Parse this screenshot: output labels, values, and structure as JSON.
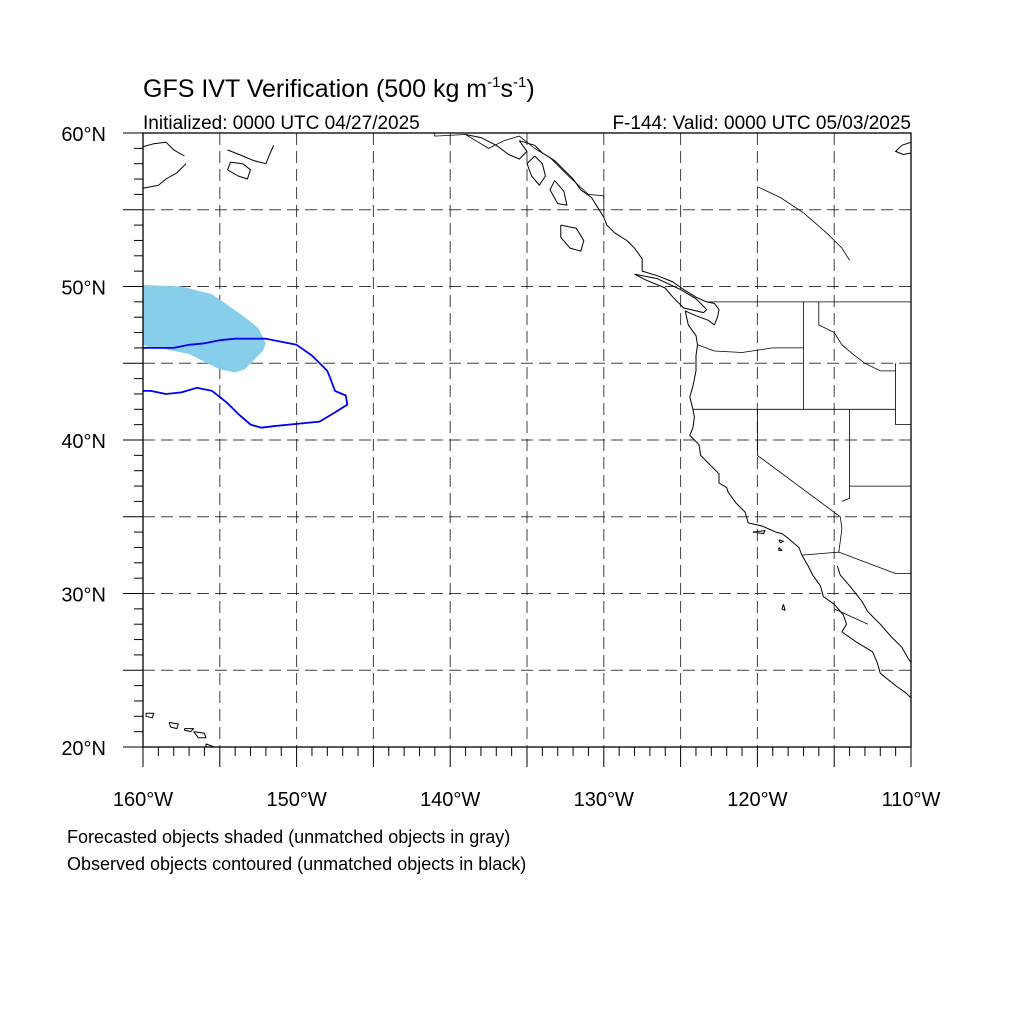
{
  "title": {
    "main": "GFS IVT Verification (500 kg m",
    "sup1": "-1",
    "mid": "s",
    "sup2": "-1",
    "end": ")"
  },
  "init_label": "Initialized: 0000 UTC 04/27/2025",
  "valid_label": "F-144: Valid: 0000 UTC 05/03/2025",
  "map_extent": {
    "lon_min": -160,
    "lon_max": -110,
    "lat_min": 20,
    "lat_max": 60
  },
  "lat_labels": [
    {
      "value": 60,
      "text": "60°N"
    },
    {
      "value": 50,
      "text": "50°N"
    },
    {
      "value": 40,
      "text": "40°N"
    },
    {
      "value": 30,
      "text": "30°N"
    },
    {
      "value": 20,
      "text": "20°N"
    }
  ],
  "lon_labels": [
    {
      "value": -160,
      "text": "160°W"
    },
    {
      "value": -150,
      "text": "150°W"
    },
    {
      "value": -140,
      "text": "140°W"
    },
    {
      "value": -130,
      "text": "130°W"
    },
    {
      "value": -120,
      "text": "120°W"
    },
    {
      "value": -110,
      "text": "110°W"
    }
  ],
  "grid_lats": [
    25,
    30,
    35,
    40,
    45,
    50,
    55
  ],
  "grid_lons": [
    -155,
    -150,
    -145,
    -140,
    -135,
    -130,
    -125,
    -120,
    -115
  ],
  "colors": {
    "forecast_fill": "#87ceeb",
    "observed_contour": "#0000ee",
    "coastline": "#000000",
    "grid": "#000000"
  },
  "forecast_object": [
    [
      -160,
      50.1
    ],
    [
      -157.5,
      50.0
    ],
    [
      -155.5,
      49.5
    ],
    [
      -154.5,
      48.8
    ],
    [
      -153.5,
      48.1
    ],
    [
      -152.5,
      47.3
    ],
    [
      -152.0,
      46.3
    ],
    [
      -152.2,
      45.8
    ],
    [
      -152.8,
      45.2
    ],
    [
      -153.4,
      44.6
    ],
    [
      -154.0,
      44.4
    ],
    [
      -155.0,
      44.6
    ],
    [
      -156.0,
      45.1
    ],
    [
      -157.0,
      45.6
    ],
    [
      -158.5,
      45.9
    ],
    [
      -159.5,
      46.0
    ],
    [
      -160,
      46.2
    ]
  ],
  "observed_object": [
    [
      -160,
      46.0
    ],
    [
      -158.0,
      46.0
    ],
    [
      -157.0,
      46.2
    ],
    [
      -156.0,
      46.3
    ],
    [
      -155.0,
      46.5
    ],
    [
      -154.0,
      46.6
    ],
    [
      -152.0,
      46.6
    ],
    [
      -150.0,
      46.2
    ],
    [
      -149.0,
      45.5
    ],
    [
      -148.0,
      44.5
    ],
    [
      -147.8,
      44.0
    ],
    [
      -147.5,
      43.2
    ],
    [
      -146.8,
      42.9
    ],
    [
      -146.7,
      42.3
    ],
    [
      -147.5,
      41.8
    ],
    [
      -148.5,
      41.2
    ],
    [
      -149.5,
      41.1
    ],
    [
      -150.5,
      41.0
    ],
    [
      -151.5,
      40.9
    ],
    [
      -152.3,
      40.8
    ],
    [
      -153.0,
      41.0
    ],
    [
      -153.8,
      41.7
    ],
    [
      -154.5,
      42.4
    ],
    [
      -155.0,
      42.8
    ],
    [
      -155.5,
      43.2
    ],
    [
      -156.5,
      43.4
    ],
    [
      -157.5,
      43.1
    ],
    [
      -158.5,
      43.0
    ],
    [
      -159.5,
      43.2
    ],
    [
      -160,
      43.2
    ]
  ],
  "coastlines": [
    [
      [
        -135.5,
        59.5
      ],
      [
        -134.5,
        59.2
      ],
      [
        -134.0,
        58.7
      ],
      [
        -133.2,
        58.2
      ],
      [
        -132.5,
        57.5
      ],
      [
        -132.0,
        57.0
      ],
      [
        -131.5,
        56.3
      ],
      [
        -130.8,
        55.8
      ],
      [
        -130.3,
        55.0
      ],
      [
        -130.0,
        54.5
      ],
      [
        -129.8,
        54.0
      ],
      [
        -129.3,
        53.5
      ],
      [
        -128.5,
        53.0
      ],
      [
        -128.0,
        52.5
      ],
      [
        -127.5,
        51.8
      ],
      [
        -127.5,
        51.0
      ],
      [
        -126.5,
        50.7
      ],
      [
        -125.5,
        50.3
      ],
      [
        -124.8,
        49.8
      ],
      [
        -124.0,
        49.3
      ],
      [
        -123.3,
        49.0
      ],
      [
        -122.8,
        48.9
      ],
      [
        -122.5,
        48.5
      ],
      [
        -122.6,
        48.0
      ],
      [
        -122.8,
        47.5
      ],
      [
        -123.2,
        47.8
      ],
      [
        -124.0,
        48.1
      ],
      [
        -124.7,
        48.4
      ],
      [
        -124.5,
        47.5
      ],
      [
        -124.0,
        46.8
      ],
      [
        -123.9,
        46.2
      ],
      [
        -124.0,
        45.5
      ],
      [
        -124.0,
        44.5
      ],
      [
        -124.2,
        43.5
      ],
      [
        -124.4,
        42.8
      ],
      [
        -124.2,
        42.0
      ],
      [
        -124.1,
        41.5
      ],
      [
        -124.2,
        40.8
      ],
      [
        -124.4,
        40.3
      ],
      [
        -123.8,
        39.7
      ],
      [
        -123.7,
        39.0
      ],
      [
        -123.0,
        38.3
      ],
      [
        -122.5,
        37.8
      ],
      [
        -122.5,
        37.2
      ],
      [
        -122.0,
        36.9
      ],
      [
        -121.9,
        36.6
      ],
      [
        -121.4,
        35.9
      ],
      [
        -120.8,
        35.3
      ],
      [
        -120.6,
        34.6
      ],
      [
        -119.7,
        34.4
      ],
      [
        -118.8,
        34.0
      ],
      [
        -118.4,
        33.9
      ],
      [
        -118.0,
        33.6
      ],
      [
        -117.3,
        33.0
      ],
      [
        -117.1,
        32.5
      ],
      [
        -116.7,
        31.8
      ],
      [
        -116.4,
        31.2
      ],
      [
        -115.9,
        30.5
      ],
      [
        -115.7,
        29.8
      ],
      [
        -115.0,
        29.3
      ],
      [
        -114.4,
        28.6
      ],
      [
        -114.2,
        28.0
      ],
      [
        -114.5,
        27.5
      ],
      [
        -113.5,
        26.8
      ],
      [
        -112.5,
        26.2
      ],
      [
        -112.2,
        25.5
      ],
      [
        -112.0,
        24.8
      ],
      [
        -111.0,
        24.0
      ],
      [
        -110.3,
        23.5
      ],
      [
        -110,
        23.2
      ]
    ],
    [
      [
        -114.8,
        31.8
      ],
      [
        -114.6,
        31.2
      ],
      [
        -114.0,
        30.5
      ],
      [
        -113.2,
        29.5
      ],
      [
        -112.8,
        28.8
      ],
      [
        -112.0,
        28.0
      ],
      [
        -111.3,
        27.2
      ],
      [
        -110.6,
        26.5
      ],
      [
        -110.2,
        25.8
      ],
      [
        -110,
        25.5
      ]
    ],
    [
      [
        -128.0,
        50.8
      ],
      [
        -127.2,
        50.4
      ],
      [
        -126.0,
        49.9
      ],
      [
        -125.5,
        49.3
      ],
      [
        -124.8,
        48.6
      ],
      [
        -123.5,
        48.3
      ],
      [
        -123.3,
        48.5
      ],
      [
        -124.0,
        49.2
      ],
      [
        -125.0,
        49.8
      ],
      [
        -126.5,
        50.5
      ],
      [
        -128.0,
        50.8
      ]
    ],
    [
      [
        -132.8,
        54.0
      ],
      [
        -131.8,
        53.8
      ],
      [
        -131.3,
        53.0
      ],
      [
        -131.5,
        52.3
      ],
      [
        -132.2,
        52.5
      ],
      [
        -132.8,
        53.2
      ],
      [
        -132.8,
        54.0
      ]
    ],
    [
      [
        -134.5,
        58.5
      ],
      [
        -135.0,
        58.0
      ],
      [
        -134.7,
        57.2
      ],
      [
        -134.2,
        56.6
      ],
      [
        -133.8,
        57.2
      ],
      [
        -134.0,
        58.0
      ],
      [
        -134.5,
        58.5
      ]
    ],
    [
      [
        -133.2,
        56.9
      ],
      [
        -133.5,
        56.3
      ],
      [
        -133.0,
        55.4
      ],
      [
        -132.4,
        55.3
      ],
      [
        -132.6,
        56.2
      ],
      [
        -133.2,
        56.9
      ]
    ],
    [
      [
        -160,
        59.1
      ],
      [
        -159.3,
        59.3
      ],
      [
        -158.5,
        59.4
      ],
      [
        -158.0,
        58.9
      ],
      [
        -157.3,
        58.5
      ]
    ],
    [
      [
        -154.5,
        58.9
      ],
      [
        -153.5,
        58.5
      ],
      [
        -152.8,
        58.2
      ],
      [
        -152.0,
        58.0
      ],
      [
        -151.8,
        58.5
      ],
      [
        -151.5,
        59.2
      ]
    ],
    [
      [
        -154.5,
        57.6
      ],
      [
        -153.8,
        57.2
      ],
      [
        -153.2,
        57.0
      ],
      [
        -153.0,
        57.6
      ],
      [
        -153.5,
        58.0
      ],
      [
        -154.3,
        58.1
      ],
      [
        -154.5,
        57.6
      ]
    ],
    [
      [
        -160,
        56.4
      ],
      [
        -159.0,
        56.6
      ],
      [
        -158.5,
        57.0
      ],
      [
        -157.8,
        57.4
      ],
      [
        -157.2,
        58.0
      ]
    ],
    [
      [
        -139.0,
        59.9
      ],
      [
        -138.0,
        59.7
      ],
      [
        -137.0,
        59.2
      ],
      [
        -136.2,
        58.6
      ],
      [
        -135.5,
        58.3
      ],
      [
        -135.0,
        58.8
      ],
      [
        -135.5,
        59.5
      ]
    ],
    [
      [
        -110,
        59.4
      ],
      [
        -110.6,
        59.2
      ],
      [
        -111.0,
        58.8
      ],
      [
        -110.5,
        58.6
      ],
      [
        -110,
        58.7
      ]
    ],
    [
      [
        -120.3,
        34.0
      ],
      [
        -119.5,
        34.1
      ],
      [
        -119.6,
        33.9
      ],
      [
        -120.3,
        34.0
      ]
    ],
    [
      [
        -118.6,
        33.5
      ],
      [
        -118.3,
        33.4
      ],
      [
        -118.5,
        33.3
      ],
      [
        -118.6,
        33.5
      ]
    ],
    [
      [
        -118.6,
        33.0
      ],
      [
        -118.4,
        32.8
      ],
      [
        -118.6,
        32.8
      ],
      [
        -118.6,
        33.0
      ]
    ],
    [
      [
        -118.3,
        29.3
      ],
      [
        -118.2,
        28.9
      ],
      [
        -118.4,
        29.0
      ],
      [
        -118.3,
        29.3
      ]
    ],
    [
      [
        -159.8,
        22.2
      ],
      [
        -159.3,
        22.2
      ],
      [
        -159.4,
        21.9
      ],
      [
        -159.8,
        22.0
      ],
      [
        -159.8,
        22.2
      ]
    ],
    [
      [
        -158.3,
        21.6
      ],
      [
        -157.7,
        21.5
      ],
      [
        -157.8,
        21.2
      ],
      [
        -158.2,
        21.3
      ],
      [
        -158.3,
        21.6
      ]
    ],
    [
      [
        -157.3,
        21.2
      ],
      [
        -156.7,
        21.2
      ],
      [
        -156.9,
        21.0
      ],
      [
        -157.3,
        21.1
      ],
      [
        -157.3,
        21.2
      ]
    ],
    [
      [
        -156.7,
        21.0
      ],
      [
        -156.0,
        20.9
      ],
      [
        -155.9,
        20.6
      ],
      [
        -156.4,
        20.6
      ],
      [
        -156.7,
        21.0
      ]
    ],
    [
      [
        -155.9,
        20.2
      ],
      [
        -155.1,
        19.9
      ],
      [
        -154.8,
        19.5
      ],
      [
        -155.5,
        19.0
      ],
      [
        -155.9,
        19.5
      ],
      [
        -155.9,
        20.2
      ]
    ]
  ],
  "borders": [
    [
      [
        -141,
        60
      ],
      [
        -141,
        59.8
      ],
      [
        -139.0,
        59.9
      ],
      [
        -137.5,
        59.0
      ],
      [
        -136.5,
        59.5
      ],
      [
        -135.5,
        59.8
      ],
      [
        -134.5,
        59.0
      ],
      [
        -133.5,
        58.4
      ],
      [
        -132.2,
        57.1
      ],
      [
        -131.0,
        56.0
      ],
      [
        -130.0,
        55.9
      ],
      [
        -130.0,
        55.3
      ]
    ],
    [
      [
        -123.3,
        49.0
      ],
      [
        -110,
        49.0
      ]
    ],
    [
      [
        -124.2,
        42.0
      ],
      [
        -111,
        42.0
      ]
    ],
    [
      [
        -123.9,
        46.2
      ],
      [
        -122.8,
        45.8
      ],
      [
        -121.0,
        45.7
      ],
      [
        -119.0,
        46.0
      ],
      [
        -117.0,
        46.0
      ]
    ],
    [
      [
        -117.0,
        49.0
      ],
      [
        -117.0,
        42.0
      ]
    ],
    [
      [
        -116.0,
        49.0
      ],
      [
        -116.0,
        47.5
      ],
      [
        -115.0,
        47.0
      ],
      [
        -114.5,
        46.2
      ],
      [
        -113.8,
        45.6
      ],
      [
        -113.0,
        45.0
      ],
      [
        -112.0,
        44.5
      ],
      [
        -111.0,
        44.5
      ]
    ],
    [
      [
        -120.0,
        42.0
      ],
      [
        -120.0,
        39.0
      ],
      [
        -114.6,
        35.0
      ],
      [
        -114.5,
        34.2
      ],
      [
        -114.7,
        32.7
      ]
    ],
    [
      [
        -114.0,
        42.0
      ],
      [
        -114.0,
        36.2
      ],
      [
        -114.5,
        36.0
      ]
    ],
    [
      [
        -111.0,
        45.0
      ],
      [
        -111.0,
        41.0
      ],
      [
        -110,
        41.0
      ]
    ],
    [
      [
        -114.0,
        37.0
      ],
      [
        -110,
        37.0
      ]
    ],
    [
      [
        -117.1,
        32.5
      ],
      [
        -114.7,
        32.7
      ],
      [
        -111.0,
        31.3
      ],
      [
        -110,
        31.3
      ]
    ],
    [
      [
        -120.0,
        56.5
      ],
      [
        -118.5,
        55.8
      ],
      [
        -117.0,
        54.8
      ],
      [
        -115.5,
        53.5
      ],
      [
        -114.5,
        52.5
      ],
      [
        -114.0,
        51.7
      ]
    ],
    [
      [
        -115.0,
        29.0
      ],
      [
        -112.8,
        28.0
      ]
    ]
  ],
  "footer": {
    "line1": "Forecasted objects shaded (unmatched objects in gray)",
    "line2": "Observed objects contoured (unmatched objects in black)"
  }
}
